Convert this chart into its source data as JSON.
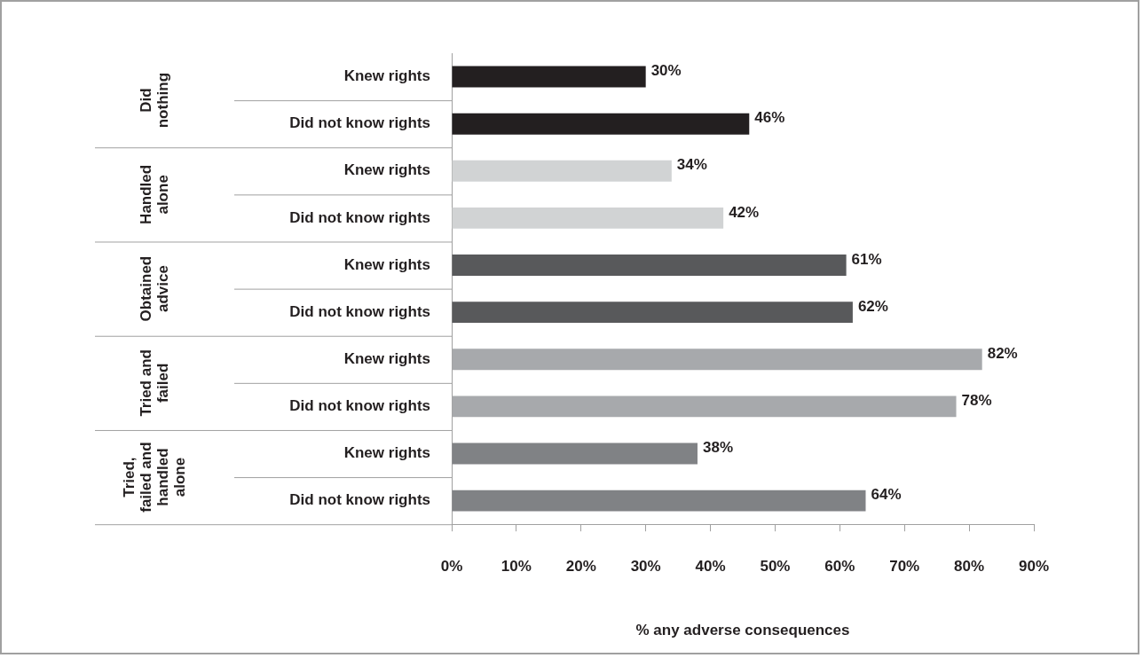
{
  "chart_data": {
    "type": "bar",
    "orientation": "horizontal",
    "xlabel": "% any adverse consequences",
    "categories": [
      "Knew rights",
      "Did not know rights",
      "Knew rights",
      "Did not know rights",
      "Knew rights",
      "Did not know rights",
      "Knew rights",
      "Did not know rights",
      "Knew rights",
      "Did not know rights"
    ],
    "values": [
      30,
      46,
      34,
      42,
      61,
      62,
      82,
      78,
      38,
      64
    ],
    "value_labels": [
      "30%",
      "46%",
      "34%",
      "42%",
      "61%",
      "62%",
      "82%",
      "78%",
      "38%",
      "64%"
    ],
    "colors": [
      "#231f20",
      "#231f20",
      "#d1d3d4",
      "#d1d3d4",
      "#58595b",
      "#58595b",
      "#a7a9ac",
      "#a7a9ac",
      "#808285",
      "#808285"
    ],
    "annotations": [
      "Did nothing",
      "Handled alone",
      "Obtained advice",
      "Tried and failed",
      "Tried, failed and handled alone"
    ],
    "xlim": [
      0,
      90
    ],
    "xticks": [
      {
        "value": 0,
        "label": "0%"
      },
      {
        "value": 10,
        "label": "10%"
      },
      {
        "value": 20,
        "label": "20%"
      },
      {
        "value": 30,
        "label": "30%"
      },
      {
        "value": 40,
        "label": "40%"
      },
      {
        "value": 50,
        "label": "50%"
      },
      {
        "value": 60,
        "label": "60%"
      },
      {
        "value": 70,
        "label": "70%"
      },
      {
        "value": 80,
        "label": "80%"
      },
      {
        "value": 90,
        "label": "90%"
      }
    ]
  }
}
